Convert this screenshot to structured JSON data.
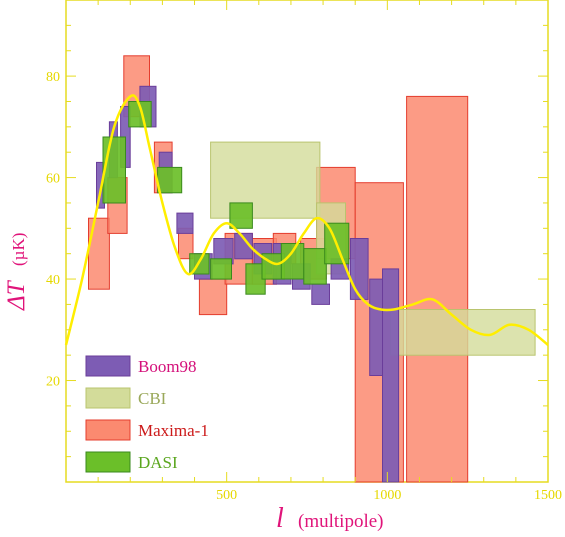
{
  "chart_data": {
    "type": "bar",
    "xlabel": "(multipole)",
    "xlabel_symbol": "l",
    "ylabel": "(µK)",
    "ylabel_symbol": "ΔT",
    "xlim": [
      0,
      1500
    ],
    "ylim": [
      0,
      95
    ],
    "x_ticks": [
      "500",
      "1000",
      "1500"
    ],
    "y_ticks": [
      "20",
      "40",
      "60",
      "80"
    ],
    "grid": false,
    "legend_position": "bottom-left",
    "series": [
      {
        "name": "Boom98",
        "color": "#7d5cb4",
        "edge": "#6a3d9a",
        "boxes": [
          [
            95,
            120,
            54,
            63
          ],
          [
            135,
            160,
            60,
            71
          ],
          [
            170,
            200,
            62,
            74
          ],
          [
            230,
            280,
            70,
            78
          ],
          [
            290,
            330,
            57,
            65
          ],
          [
            345,
            395,
            49,
            53
          ],
          [
            400,
            455,
            40,
            45
          ],
          [
            460,
            520,
            43,
            48
          ],
          [
            525,
            580,
            44,
            49
          ],
          [
            585,
            640,
            41,
            47
          ],
          [
            645,
            700,
            39,
            47
          ],
          [
            705,
            760,
            38,
            43
          ],
          [
            765,
            820,
            35,
            39
          ],
          [
            825,
            880,
            40,
            44
          ],
          [
            885,
            940,
            36,
            48
          ],
          [
            945,
            985,
            21,
            40
          ],
          [
            985,
            1035,
            0,
            42
          ]
        ]
      },
      {
        "name": "CBI",
        "color": "#d3dc9a",
        "edge": "#b9c46e",
        "boxes": [
          [
            450,
            790,
            52,
            67
          ],
          [
            780,
            870,
            41,
            55
          ],
          [
            1010,
            1460,
            25,
            34
          ]
        ]
      },
      {
        "name": "Maxima-1",
        "color": "#fb8a70",
        "edge": "#e43d2e",
        "boxes": [
          [
            70,
            135,
            38,
            52
          ],
          [
            130,
            190,
            49,
            60
          ],
          [
            180,
            260,
            72,
            84
          ],
          [
            275,
            330,
            57,
            67
          ],
          [
            350,
            395,
            44,
            50
          ],
          [
            415,
            500,
            33,
            40
          ],
          [
            495,
            580,
            39,
            49
          ],
          [
            580,
            655,
            39,
            48
          ],
          [
            645,
            715,
            43,
            49
          ],
          [
            730,
            810,
            40,
            48
          ],
          [
            780,
            900,
            44,
            62
          ],
          [
            900,
            1050,
            0,
            59
          ],
          [
            1060,
            1250,
            0,
            76
          ]
        ]
      },
      {
        "name": "DASI",
        "color": "#6bbf29",
        "edge": "#3a8a1d",
        "boxes": [
          [
            115,
            185,
            55,
            68
          ],
          [
            195,
            265,
            70,
            75
          ],
          [
            285,
            360,
            57,
            62
          ],
          [
            385,
            445,
            41,
            45
          ],
          [
            450,
            515,
            40,
            44
          ],
          [
            510,
            580,
            50,
            55
          ],
          [
            560,
            620,
            37,
            43
          ],
          [
            610,
            680,
            40,
            45
          ],
          [
            670,
            740,
            40,
            47
          ],
          [
            740,
            810,
            39,
            46
          ],
          [
            805,
            880,
            43,
            51
          ]
        ]
      }
    ],
    "theory_curve": {
      "color": "#ffee00",
      "x": [
        0,
        50,
        100,
        150,
        200,
        230,
        260,
        300,
        340,
        380,
        420,
        460,
        500,
        540,
        580,
        620,
        660,
        700,
        740,
        780,
        820,
        860,
        900,
        940,
        980,
        1020,
        1080,
        1140,
        1200,
        1260,
        1320,
        1380,
        1440,
        1500
      ],
      "y": [
        27,
        40,
        55,
        70,
        76,
        74,
        66,
        55,
        46,
        41,
        44,
        49,
        51,
        49,
        46,
        44,
        43,
        45,
        49,
        52,
        50,
        44,
        38,
        35,
        34,
        34,
        35,
        36,
        33,
        30,
        29,
        31,
        30,
        27
      ]
    }
  }
}
